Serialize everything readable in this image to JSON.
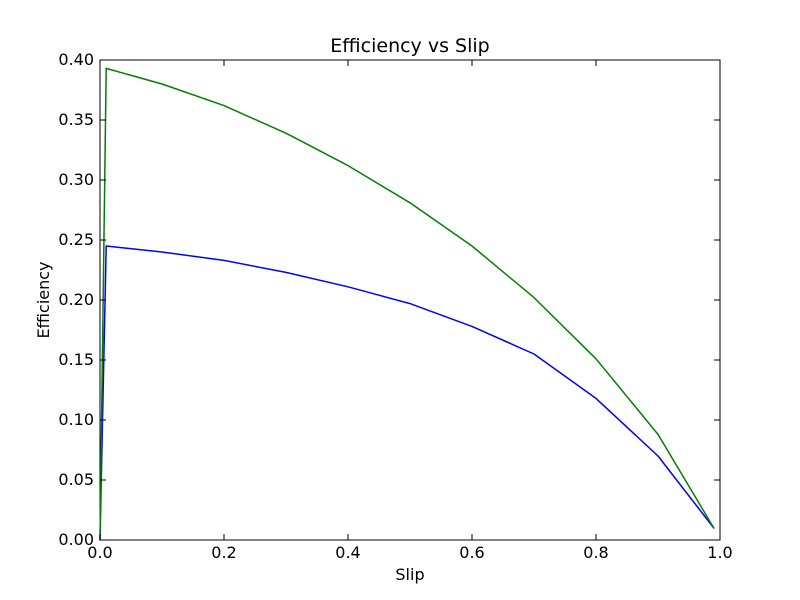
{
  "chart_data": {
    "type": "line",
    "title": "Efficiency vs Slip",
    "xlabel": "Slip",
    "ylabel": "Efficiency",
    "xlim": [
      0.0,
      1.0
    ],
    "ylim": [
      0.0,
      0.4
    ],
    "grid": false,
    "x_ticks": [
      0.0,
      0.2,
      0.4,
      0.6,
      0.8,
      1.0
    ],
    "y_ticks": [
      0.0,
      0.05,
      0.1,
      0.15,
      0.2,
      0.25,
      0.3,
      0.35,
      0.4
    ],
    "x_tick_labels": [
      "0.0",
      "0.2",
      "0.4",
      "0.6",
      "0.8",
      "1.0"
    ],
    "y_tick_labels": [
      "0.00",
      "0.05",
      "0.10",
      "0.15",
      "0.20",
      "0.25",
      "0.30",
      "0.35",
      "0.40"
    ],
    "series": [
      {
        "color": "#0000ff",
        "x": [
          0.0,
          0.01,
          0.1,
          0.2,
          0.3,
          0.4,
          0.5,
          0.6,
          0.7,
          0.8,
          0.9,
          0.99
        ],
        "y": [
          0.0,
          0.245,
          0.24,
          0.233,
          0.223,
          0.211,
          0.197,
          0.178,
          0.155,
          0.118,
          0.07,
          0.01
        ]
      },
      {
        "color": "#008000",
        "x": [
          0.0,
          0.01,
          0.1,
          0.2,
          0.3,
          0.4,
          0.5,
          0.6,
          0.7,
          0.8,
          0.9,
          0.99
        ],
        "y": [
          0.0,
          0.393,
          0.38,
          0.362,
          0.339,
          0.312,
          0.281,
          0.245,
          0.202,
          0.151,
          0.088,
          0.01
        ]
      }
    ]
  }
}
